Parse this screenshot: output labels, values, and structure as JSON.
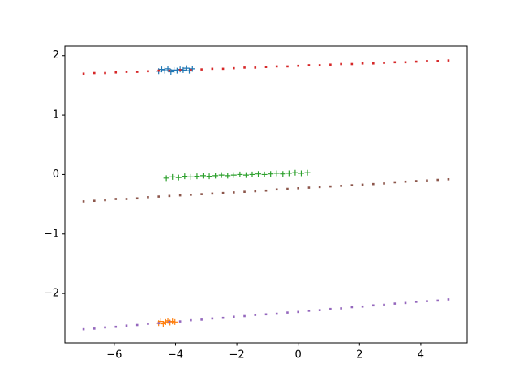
{
  "chart_data": {
    "type": "scatter",
    "xlim": [
      -7.61,
      5.51
    ],
    "ylim": [
      -2.83,
      2.16
    ],
    "xticks": [
      {
        "value": -6,
        "label": "−6"
      },
      {
        "value": -4,
        "label": "−4"
      },
      {
        "value": -2,
        "label": "−2"
      },
      0,
      2,
      4
    ],
    "yticks": [
      {
        "value": -2,
        "label": "−2"
      },
      {
        "value": -1,
        "label": "−1"
      },
      0,
      1,
      2
    ],
    "series": [
      {
        "color": "#1f77b4",
        "marker": "+",
        "x": [
          -4.55,
          -4.45,
          -4.35,
          -4.25,
          -4.15,
          -4.05,
          -3.95,
          -3.85,
          -3.75,
          -3.65,
          -3.55,
          -3.45
        ],
        "values": [
          1.74,
          1.77,
          1.75,
          1.78,
          1.73,
          1.76,
          1.75,
          1.77,
          1.76,
          1.79,
          1.75,
          1.78
        ]
      },
      {
        "color": "#ff7f0e",
        "marker": "+",
        "x": [
          -4.55,
          -4.48,
          -4.4,
          -4.32,
          -4.25,
          -4.18,
          -4.1,
          -4.02
        ],
        "values": [
          -2.5,
          -2.47,
          -2.51,
          -2.48,
          -2.46,
          -2.49,
          -2.47,
          -2.48
        ]
      },
      {
        "color": "#2ca02c",
        "marker": "+",
        "x": [
          -4.3,
          -4.1,
          -3.9,
          -3.7,
          -3.5,
          -3.3,
          -3.1,
          -2.9,
          -2.7,
          -2.5,
          -2.3,
          -2.1,
          -1.9,
          -1.7,
          -1.5,
          -1.3,
          -1.1,
          -0.9,
          -0.7,
          -0.5,
          -0.3,
          -0.1,
          0.1,
          0.3
        ],
        "values": [
          -0.06,
          -0.04,
          -0.05,
          -0.03,
          -0.04,
          -0.03,
          -0.02,
          -0.03,
          -0.02,
          -0.01,
          -0.02,
          -0.01,
          0,
          -0.01,
          0,
          0.01,
          0,
          0.01,
          0.02,
          0.01,
          0.02,
          0.03,
          0.02,
          0.03
        ]
      },
      {
        "color": "#d62728",
        "marker": ".",
        "x": [
          -7,
          -6.65,
          -6.3,
          -5.95,
          -5.6,
          -5.25,
          -4.9,
          -4.55,
          -4.2,
          -3.85,
          -3.5,
          -3.15,
          -2.8,
          -2.45,
          -2.1,
          -1.75,
          -1.4,
          -1.05,
          -0.7,
          -0.35,
          0,
          0.35,
          0.7,
          1.05,
          1.4,
          1.75,
          2.1,
          2.45,
          2.8,
          3.15,
          3.5,
          3.85,
          4.2,
          4.55,
          4.9
        ],
        "values": [
          1.7,
          1.71,
          1.71,
          1.72,
          1.73,
          1.73,
          1.74,
          1.75,
          1.75,
          1.76,
          1.76,
          1.77,
          1.78,
          1.78,
          1.79,
          1.8,
          1.8,
          1.81,
          1.82,
          1.82,
          1.83,
          1.84,
          1.84,
          1.85,
          1.86,
          1.86,
          1.87,
          1.87,
          1.88,
          1.89,
          1.89,
          1.9,
          1.91,
          1.91,
          1.92
        ]
      },
      {
        "color": "#9467bd",
        "marker": ".",
        "x": [
          -7,
          -6.65,
          -6.3,
          -5.95,
          -5.6,
          -5.25,
          -4.9,
          -4.55,
          -4.2,
          -3.85,
          -3.5,
          -3.15,
          -2.8,
          -2.45,
          -2.1,
          -1.75,
          -1.4,
          -1.05,
          -0.7,
          -0.35,
          0,
          0.35,
          0.7,
          1.05,
          1.4,
          1.75,
          2.1,
          2.45,
          2.8,
          3.15,
          3.5,
          3.85,
          4.2,
          4.55,
          4.9
        ],
        "values": [
          -2.6,
          -2.59,
          -2.57,
          -2.56,
          -2.54,
          -2.53,
          -2.51,
          -2.5,
          -2.48,
          -2.47,
          -2.45,
          -2.44,
          -2.42,
          -2.41,
          -2.39,
          -2.38,
          -2.36,
          -2.35,
          -2.34,
          -2.32,
          -2.31,
          -2.29,
          -2.28,
          -2.26,
          -2.25,
          -2.23,
          -2.22,
          -2.2,
          -2.19,
          -2.17,
          -2.16,
          -2.14,
          -2.13,
          -2.12,
          -2.1
        ]
      },
      {
        "color": "#8c564b",
        "marker": ".",
        "x": [
          -7,
          -6.65,
          -6.3,
          -5.95,
          -5.6,
          -5.25,
          -4.9,
          -4.55,
          -4.2,
          -3.85,
          -3.5,
          -3.15,
          -2.8,
          -2.45,
          -2.1,
          -1.75,
          -1.4,
          -1.05,
          -0.7,
          -0.35,
          0,
          0.35,
          0.7,
          1.05,
          1.4,
          1.75,
          2.1,
          2.45,
          2.8,
          3.15,
          3.5,
          3.85,
          4.2,
          4.55,
          4.9
        ],
        "values": [
          -0.45,
          -0.44,
          -0.43,
          -0.41,
          -0.41,
          -0.4,
          -0.38,
          -0.37,
          -0.36,
          -0.35,
          -0.34,
          -0.33,
          -0.32,
          -0.31,
          -0.3,
          -0.29,
          -0.28,
          -0.27,
          -0.25,
          -0.24,
          -0.23,
          -0.22,
          -0.21,
          -0.2,
          -0.19,
          -0.18,
          -0.17,
          -0.16,
          -0.15,
          -0.13,
          -0.12,
          -0.11,
          -0.1,
          -0.09,
          -0.08
        ]
      }
    ]
  }
}
